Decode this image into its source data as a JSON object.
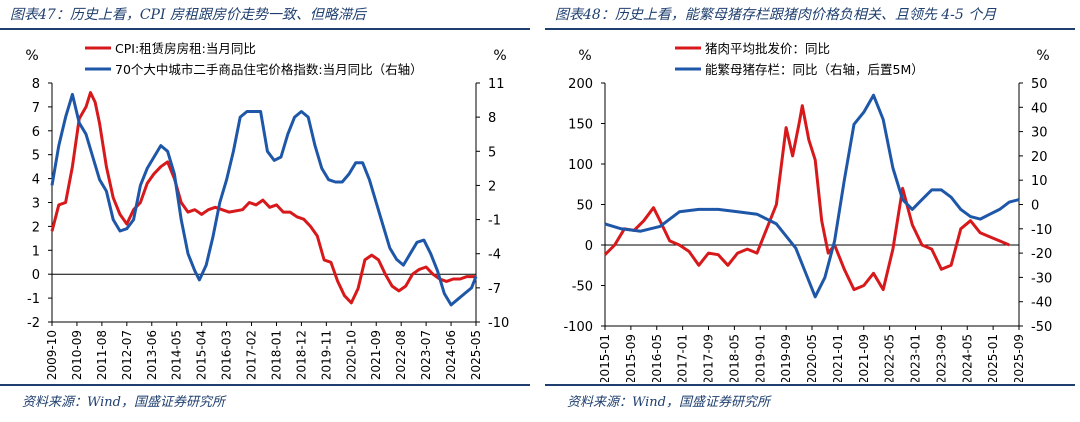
{
  "chart_data": [
    {
      "type": "line",
      "figure_title": "图表47：历史上看，CPI 房租跟房价走势一致、但略滞后",
      "source": "资料来源：Wind，国盛证券研究所",
      "ylabel_left": "%",
      "ylabel_right": "%",
      "ylim_left": [
        -2,
        8
      ],
      "yticks_left": [
        -2,
        -1,
        0,
        1,
        2,
        3,
        4,
        5,
        6,
        7,
        8
      ],
      "ylim_right": [
        -10,
        11
      ],
      "yticks_right": [
        -10,
        -7,
        -4,
        -1,
        2,
        5,
        8,
        11
      ],
      "x_start": "2009-10",
      "x_end": "2025-05",
      "x_ticks": [
        "2009-10",
        "2010-09",
        "2011-08",
        "2012-07",
        "2013-06",
        "2014-05",
        "2015-04",
        "2016-03",
        "2017-02",
        "2018-01",
        "2018-12",
        "2019-11",
        "2020-10",
        "2021-09",
        "2022-08",
        "2023-07",
        "2024-06",
        "2025-05"
      ],
      "legend_position": "top-left",
      "zero_line": true,
      "series": [
        {
          "name": "CPI:租赁房房租:当月同比",
          "axis": "left",
          "color": "#d7191c",
          "points": [
            [
              "2009-10",
              1.8
            ],
            [
              "2010-01",
              2.9
            ],
            [
              "2010-04",
              3.0
            ],
            [
              "2010-07",
              4.5
            ],
            [
              "2010-10",
              6.5
            ],
            [
              "2011-01",
              7.0
            ],
            [
              "2011-03",
              7.6
            ],
            [
              "2011-05",
              7.2
            ],
            [
              "2011-07",
              6.3
            ],
            [
              "2011-10",
              4.5
            ],
            [
              "2012-01",
              3.2
            ],
            [
              "2012-04",
              2.5
            ],
            [
              "2012-07",
              2.1
            ],
            [
              "2012-10",
              2.7
            ],
            [
              "2013-01",
              3.0
            ],
            [
              "2013-04",
              3.8
            ],
            [
              "2013-07",
              4.2
            ],
            [
              "2013-10",
              4.5
            ],
            [
              "2014-01",
              4.7
            ],
            [
              "2014-04",
              4.0
            ],
            [
              "2014-07",
              3.0
            ],
            [
              "2014-10",
              2.6
            ],
            [
              "2015-01",
              2.7
            ],
            [
              "2015-04",
              2.5
            ],
            [
              "2015-07",
              2.7
            ],
            [
              "2015-10",
              2.8
            ],
            [
              "2016-04",
              2.6
            ],
            [
              "2016-10",
              2.7
            ],
            [
              "2017-01",
              3.0
            ],
            [
              "2017-04",
              2.9
            ],
            [
              "2017-07",
              3.1
            ],
            [
              "2017-10",
              2.8
            ],
            [
              "2018-01",
              2.9
            ],
            [
              "2018-04",
              2.6
            ],
            [
              "2018-07",
              2.6
            ],
            [
              "2018-10",
              2.4
            ],
            [
              "2019-01",
              2.3
            ],
            [
              "2019-04",
              2.0
            ],
            [
              "2019-07",
              1.6
            ],
            [
              "2019-10",
              0.6
            ],
            [
              "2020-01",
              0.5
            ],
            [
              "2020-04",
              -0.3
            ],
            [
              "2020-07",
              -0.9
            ],
            [
              "2020-10",
              -1.2
            ],
            [
              "2021-01",
              -0.6
            ],
            [
              "2021-04",
              0.6
            ],
            [
              "2021-07",
              0.8
            ],
            [
              "2021-10",
              0.6
            ],
            [
              "2022-01",
              0.0
            ],
            [
              "2022-04",
              -0.5
            ],
            [
              "2022-07",
              -0.7
            ],
            [
              "2022-10",
              -0.5
            ],
            [
              "2023-01",
              0.0
            ],
            [
              "2023-04",
              0.2
            ],
            [
              "2023-07",
              0.3
            ],
            [
              "2023-10",
              0.0
            ],
            [
              "2024-01",
              -0.2
            ],
            [
              "2024-04",
              -0.3
            ],
            [
              "2024-07",
              -0.2
            ],
            [
              "2024-10",
              -0.2
            ],
            [
              "2025-01",
              -0.1
            ],
            [
              "2025-05",
              -0.1
            ]
          ]
        },
        {
          "name": "70个大中城市二手商品住宅价格指数:当月同比（右轴）",
          "axis": "right",
          "color": "#1f57a8",
          "points": [
            [
              "2009-10",
              2.0
            ],
            [
              "2010-01",
              5.5
            ],
            [
              "2010-04",
              8.0
            ],
            [
              "2010-07",
              10.0
            ],
            [
              "2010-10",
              7.5
            ],
            [
              "2011-01",
              6.5
            ],
            [
              "2011-04",
              4.5
            ],
            [
              "2011-07",
              2.5
            ],
            [
              "2011-10",
              1.5
            ],
            [
              "2012-01",
              -1.0
            ],
            [
              "2012-04",
              -2.0
            ],
            [
              "2012-07",
              -1.8
            ],
            [
              "2012-10",
              -1.0
            ],
            [
              "2013-01",
              2.0
            ],
            [
              "2013-04",
              3.5
            ],
            [
              "2013-07",
              4.5
            ],
            [
              "2013-10",
              5.5
            ],
            [
              "2014-01",
              5.0
            ],
            [
              "2014-04",
              3.0
            ],
            [
              "2014-07",
              -1.0
            ],
            [
              "2014-10",
              -4.0
            ],
            [
              "2015-01",
              -5.5
            ],
            [
              "2015-03",
              -6.3
            ],
            [
              "2015-06",
              -5.0
            ],
            [
              "2015-09",
              -2.5
            ],
            [
              "2015-12",
              0.5
            ],
            [
              "2016-03",
              2.5
            ],
            [
              "2016-06",
              5.0
            ],
            [
              "2016-09",
              8.0
            ],
            [
              "2016-12",
              8.5
            ],
            [
              "2017-03",
              8.5
            ],
            [
              "2017-06",
              8.5
            ],
            [
              "2017-09",
              5.0
            ],
            [
              "2017-12",
              4.2
            ],
            [
              "2018-03",
              4.5
            ],
            [
              "2018-06",
              6.5
            ],
            [
              "2018-09",
              8.0
            ],
            [
              "2018-12",
              8.5
            ],
            [
              "2019-03",
              8.0
            ],
            [
              "2019-06",
              5.5
            ],
            [
              "2019-09",
              3.5
            ],
            [
              "2019-12",
              2.5
            ],
            [
              "2020-03",
              2.3
            ],
            [
              "2020-06",
              2.3
            ],
            [
              "2020-09",
              3.0
            ],
            [
              "2020-12",
              4.0
            ],
            [
              "2021-03",
              4.0
            ],
            [
              "2021-06",
              2.5
            ],
            [
              "2021-09",
              0.5
            ],
            [
              "2021-12",
              -1.5
            ],
            [
              "2022-03",
              -3.5
            ],
            [
              "2022-06",
              -4.5
            ],
            [
              "2022-09",
              -5.0
            ],
            [
              "2022-12",
              -4.0
            ],
            [
              "2023-03",
              -3.0
            ],
            [
              "2023-06",
              -2.8
            ],
            [
              "2023-09",
              -4.0
            ],
            [
              "2023-12",
              -5.5
            ],
            [
              "2024-03",
              -7.5
            ],
            [
              "2024-06",
              -8.5
            ],
            [
              "2024-09",
              -8.0
            ],
            [
              "2024-12",
              -7.5
            ],
            [
              "2025-03",
              -7.0
            ],
            [
              "2025-05",
              -6.0
            ]
          ]
        }
      ]
    },
    {
      "type": "line",
      "figure_title": "图表48：历史上看，能繁母猪存栏跟猪肉价格负相关、且领先 4-5 个月",
      "source": "资料来源：Wind，国盛证券研究所",
      "ylabel_left": "%",
      "ylabel_right": "%",
      "ylim_left": [
        -100,
        200
      ],
      "yticks_left": [
        -100,
        -50,
        0,
        50,
        100,
        150,
        200
      ],
      "ylim_right": [
        -50,
        50
      ],
      "yticks_right": [
        -50,
        -40,
        -30,
        -20,
        -10,
        0,
        10,
        20,
        30,
        40,
        50
      ],
      "x_start": "2015-01",
      "x_end": "2025-09",
      "x_ticks": [
        "2015-01",
        "2015-09",
        "2016-05",
        "2017-01",
        "2017-09",
        "2018-05",
        "2019-01",
        "2019-09",
        "2020-05",
        "2021-01",
        "2021-09",
        "2022-05",
        "2023-01",
        "2023-09",
        "2024-05",
        "2025-01",
        "2025-09"
      ],
      "legend_position": "top-left",
      "zero_line": true,
      "series": [
        {
          "name": "猪肉平均批发价：同比",
          "axis": "left",
          "color": "#d7191c",
          "points": [
            [
              "2015-01",
              -12
            ],
            [
              "2015-04",
              0
            ],
            [
              "2015-07",
              20
            ],
            [
              "2015-10",
              18
            ],
            [
              "2016-01",
              30
            ],
            [
              "2016-04",
              46
            ],
            [
              "2016-06",
              30
            ],
            [
              "2016-09",
              5
            ],
            [
              "2016-12",
              0
            ],
            [
              "2017-03",
              -8
            ],
            [
              "2017-06",
              -25
            ],
            [
              "2017-09",
              -10
            ],
            [
              "2017-12",
              -12
            ],
            [
              "2018-03",
              -25
            ],
            [
              "2018-06",
              -10
            ],
            [
              "2018-09",
              -5
            ],
            [
              "2018-12",
              -10
            ],
            [
              "2019-03",
              20
            ],
            [
              "2019-06",
              50
            ],
            [
              "2019-09",
              145
            ],
            [
              "2019-11",
              110
            ],
            [
              "2020-01",
              150
            ],
            [
              "2020-02",
              172
            ],
            [
              "2020-04",
              130
            ],
            [
              "2020-06",
              105
            ],
            [
              "2020-08",
              30
            ],
            [
              "2020-10",
              -10
            ],
            [
              "2020-12",
              0
            ],
            [
              "2021-03",
              -30
            ],
            [
              "2021-06",
              -55
            ],
            [
              "2021-09",
              -50
            ],
            [
              "2021-12",
              -35
            ],
            [
              "2022-03",
              -55
            ],
            [
              "2022-06",
              -5
            ],
            [
              "2022-09",
              70
            ],
            [
              "2022-12",
              25
            ],
            [
              "2023-03",
              0
            ],
            [
              "2023-06",
              -5
            ],
            [
              "2023-09",
              -30
            ],
            [
              "2023-12",
              -25
            ],
            [
              "2024-03",
              20
            ],
            [
              "2024-06",
              30
            ],
            [
              "2024-09",
              15
            ],
            [
              "2024-12",
              10
            ],
            [
              "2025-03",
              5
            ],
            [
              "2025-06",
              0
            ]
          ]
        },
        {
          "name": "能繁母猪存栏：同比（右轴，后置5M）",
          "axis": "right",
          "color": "#1f57a8",
          "points": [
            [
              "2015-01",
              -8
            ],
            [
              "2015-06",
              -10
            ],
            [
              "2015-12",
              -11
            ],
            [
              "2016-06",
              -9
            ],
            [
              "2016-12",
              -3
            ],
            [
              "2017-06",
              -2
            ],
            [
              "2017-12",
              -2
            ],
            [
              "2018-06",
              -3
            ],
            [
              "2018-12",
              -4
            ],
            [
              "2019-06",
              -8
            ],
            [
              "2019-12",
              -18
            ],
            [
              "2020-03",
              -28
            ],
            [
              "2020-06",
              -38
            ],
            [
              "2020-09",
              -30
            ],
            [
              "2020-12",
              -15
            ],
            [
              "2021-03",
              10
            ],
            [
              "2021-06",
              33
            ],
            [
              "2021-09",
              38
            ],
            [
              "2021-12",
              45
            ],
            [
              "2022-03",
              35
            ],
            [
              "2022-06",
              15
            ],
            [
              "2022-09",
              2
            ],
            [
              "2022-12",
              -2
            ],
            [
              "2023-03",
              2
            ],
            [
              "2023-06",
              6
            ],
            [
              "2023-09",
              6
            ],
            [
              "2023-12",
              3
            ],
            [
              "2024-03",
              -2
            ],
            [
              "2024-06",
              -5
            ],
            [
              "2024-09",
              -6
            ],
            [
              "2024-12",
              -4
            ],
            [
              "2025-03",
              -2
            ],
            [
              "2025-06",
              1
            ],
            [
              "2025-09",
              2
            ]
          ]
        }
      ]
    }
  ]
}
